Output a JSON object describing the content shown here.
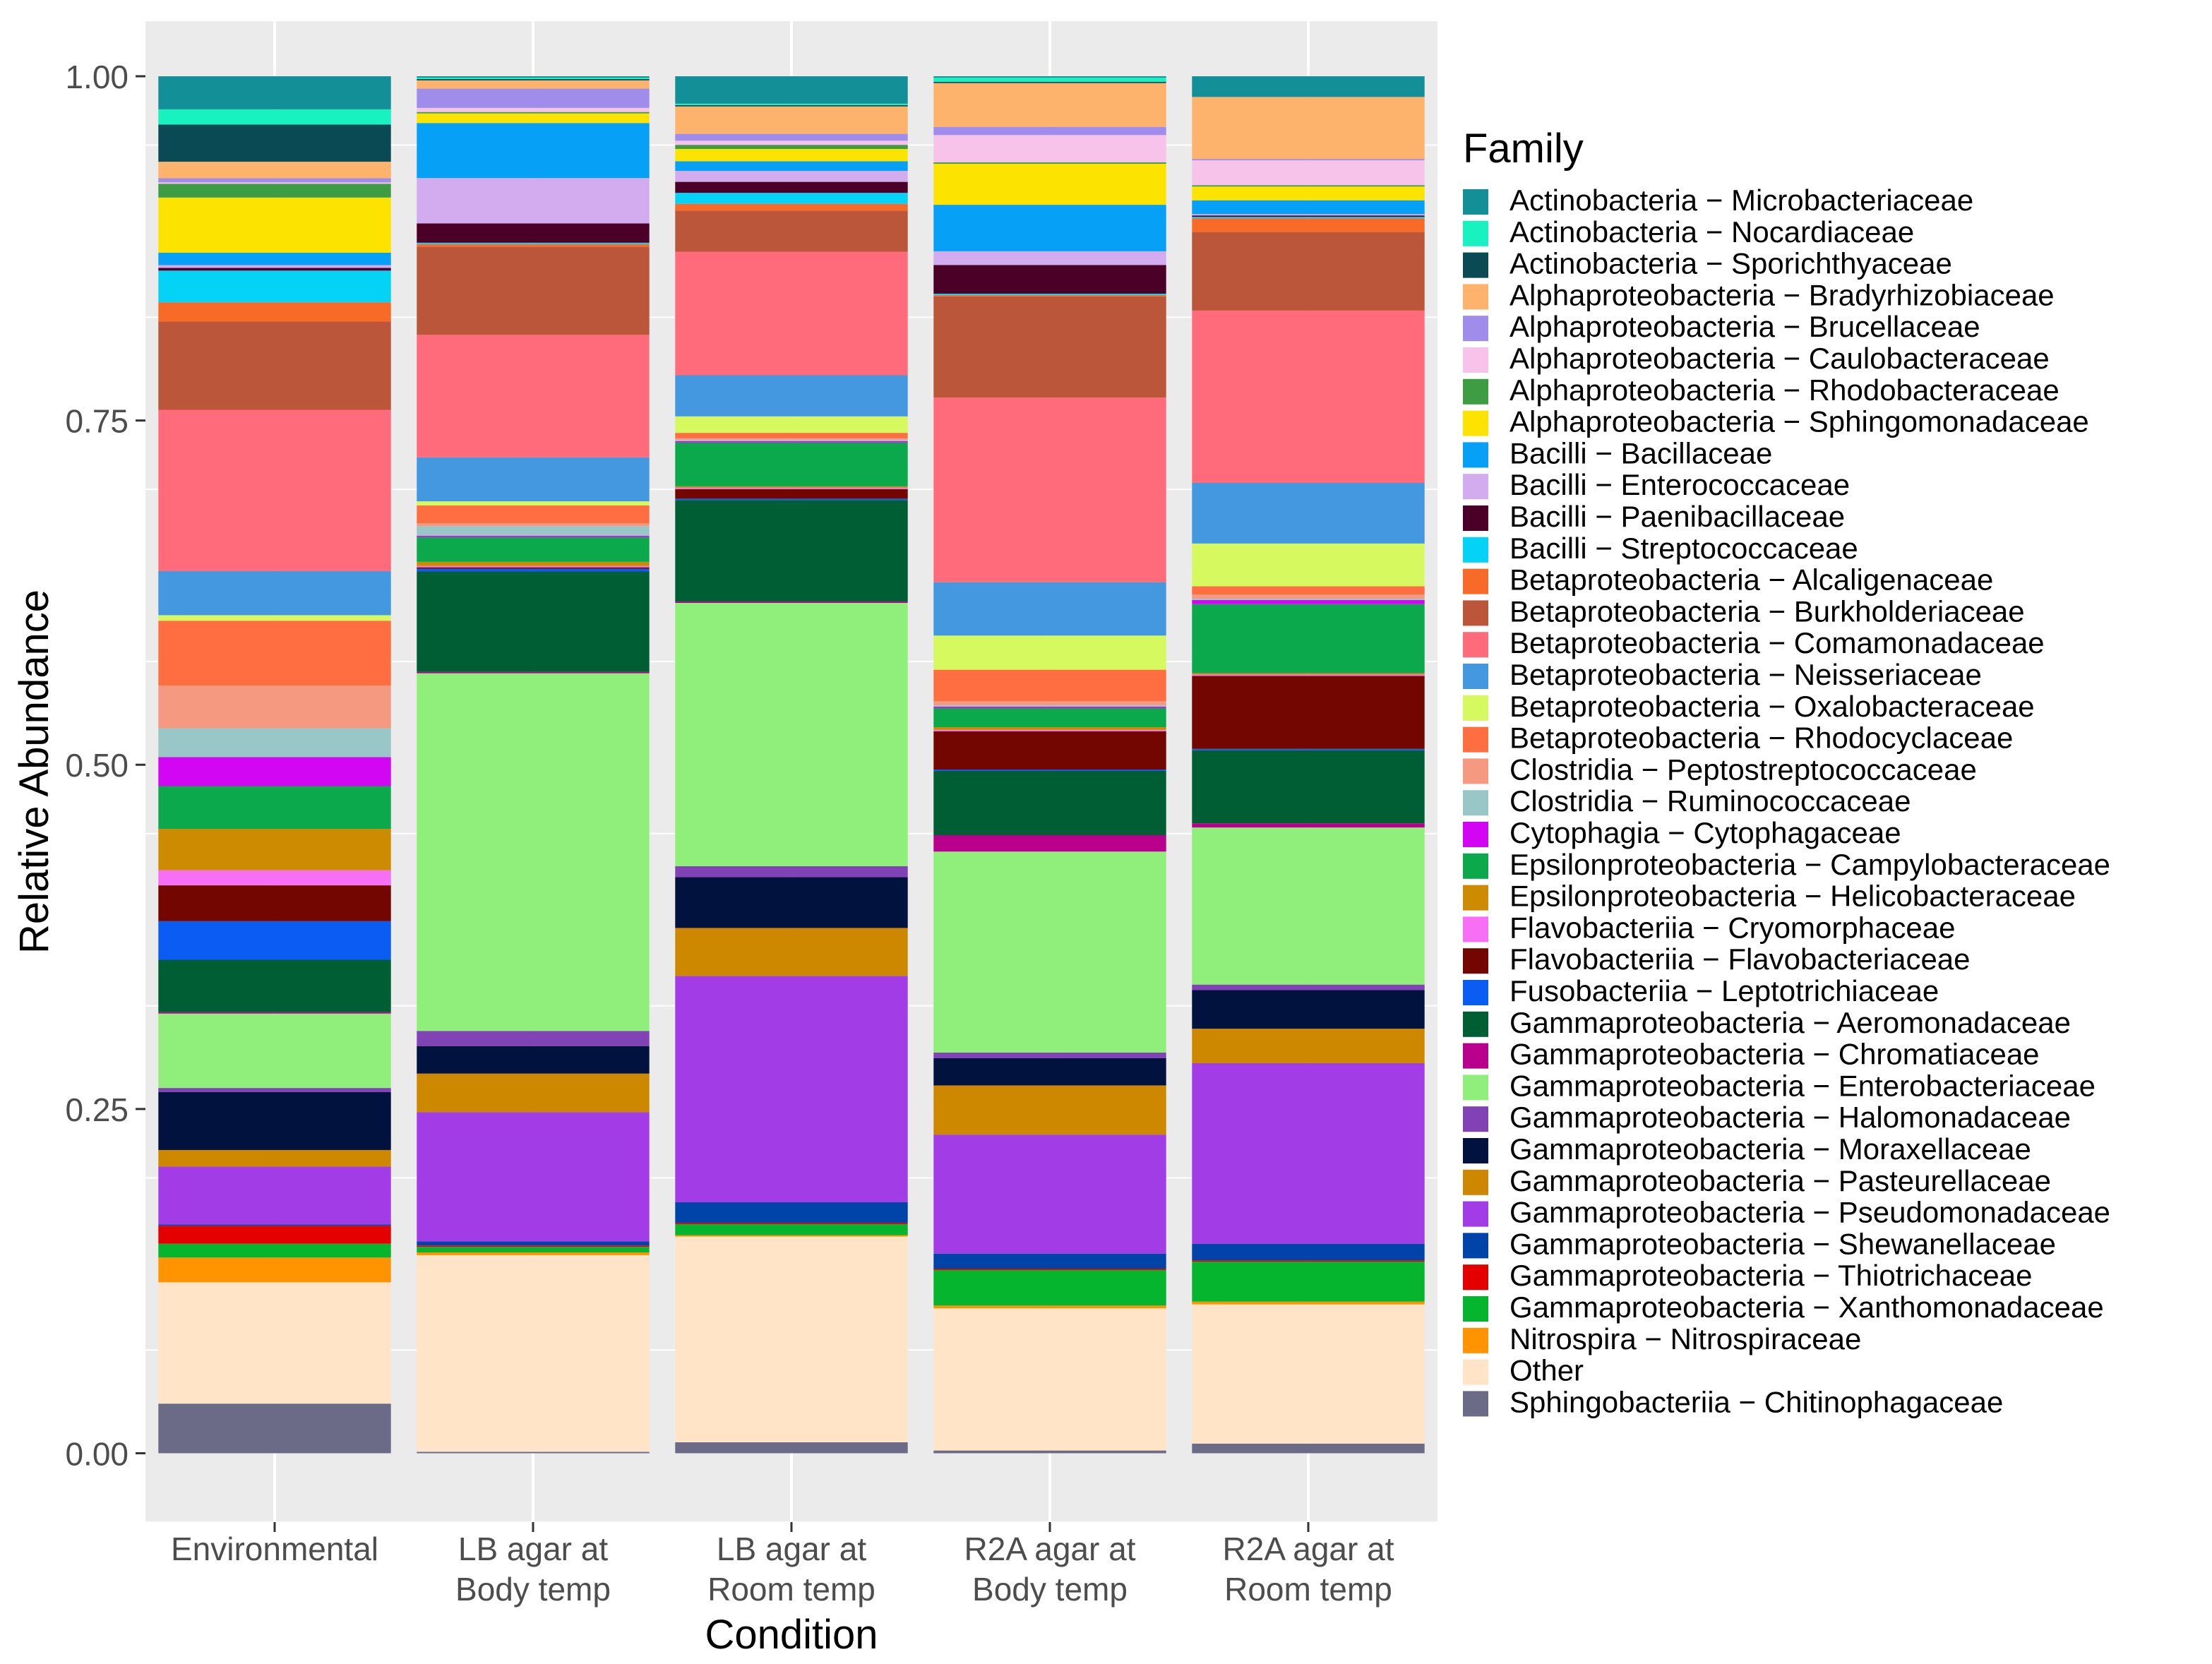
{
  "chart_data": {
    "type": "bar",
    "stacked": true,
    "xlabel": "Condition",
    "ylabel": "Relative Abundance",
    "ylim": [
      -0.05,
      1.04
    ],
    "yticks": [
      0,
      0.25,
      0.5,
      0.75,
      1
    ],
    "ytick_labels": [
      "0.00",
      "0.25",
      "0.50",
      "0.75",
      "1.00"
    ],
    "grid": true,
    "legend_title": "Family",
    "legend_position": "right",
    "categories": [
      [
        "Environmental"
      ],
      [
        "LB agar at",
        "Body temp"
      ],
      [
        "LB agar at",
        "Room temp"
      ],
      [
        "R2A agar at",
        "Body temp"
      ],
      [
        "R2A agar at",
        "Room temp"
      ]
    ],
    "series": [
      {
        "name": "Actinobacteria − Microbacteriaceae",
        "color": "#138F98",
        "values": [
          0.024,
          0.001,
          0.02,
          0.001,
          0.015
        ]
      },
      {
        "name": "Actinobacteria − Nocardiaceae",
        "color": "#17F2C0",
        "values": [
          0.011,
          0.001,
          0.001,
          0.003,
          0.0
        ]
      },
      {
        "name": "Actinobacteria − Sporichthyaceae",
        "color": "#0A4A54",
        "values": [
          0.027,
          0.001,
          0.001,
          0.001,
          0.0
        ]
      },
      {
        "name": "Alphaproteobacteria − Bradyrhizobiaceae",
        "color": "#FDB36B",
        "values": [
          0.012,
          0.006,
          0.02,
          0.032,
          0.045
        ]
      },
      {
        "name": "Alphaproteobacteria − Brucellaceae",
        "color": "#9F8CEB",
        "values": [
          0.003,
          0.014,
          0.005,
          0.006,
          0.001
        ]
      },
      {
        "name": "Alphaproteobacteria − Caulobacteraceae",
        "color": "#F7C3EA",
        "values": [
          0.001,
          0.003,
          0.003,
          0.02,
          0.018
        ]
      },
      {
        "name": "Alphaproteobacteria − Rhodobacteraceae",
        "color": "#3E9C42",
        "values": [
          0.01,
          0.001,
          0.003,
          0.001,
          0.001
        ]
      },
      {
        "name": "Alphaproteobacteria − Sphingomonadaceae",
        "color": "#FCE300",
        "values": [
          0.04,
          0.007,
          0.009,
          0.03,
          0.01
        ]
      },
      {
        "name": "Bacilli − Bacillaceae",
        "color": "#06A0F6",
        "values": [
          0.009,
          0.04,
          0.007,
          0.034,
          0.01
        ]
      },
      {
        "name": "Bacilli − Enterococcaceae",
        "color": "#D3ACEF",
        "values": [
          0.002,
          0.033,
          0.008,
          0.01,
          0.001
        ]
      },
      {
        "name": "Bacilli − Paenibacillaceae",
        "color": "#4A0027",
        "values": [
          0.002,
          0.014,
          0.008,
          0.021,
          0.001
        ]
      },
      {
        "name": "Bacilli − Streptococcaceae",
        "color": "#04D3F6",
        "values": [
          0.023,
          0.001,
          0.008,
          0.001,
          0.001
        ]
      },
      {
        "name": "Betaproteobacteria − Alcaligenaceae",
        "color": "#F86A28",
        "values": [
          0.014,
          0.002,
          0.005,
          0.001,
          0.01
        ]
      },
      {
        "name": "Betaproteobacteria − Burkholderiaceae",
        "color": "#BC563B",
        "values": [
          0.064,
          0.064,
          0.03,
          0.074,
          0.057
        ]
      },
      {
        "name": "Betaproteobacteria − Comamonadaceae",
        "color": "#FF6B7A",
        "values": [
          0.117,
          0.089,
          0.09,
          0.135,
          0.125
        ]
      },
      {
        "name": "Betaproteobacteria − Neisseriaceae",
        "color": "#4398E0",
        "values": [
          0.032,
          0.032,
          0.03,
          0.039,
          0.044
        ]
      },
      {
        "name": "Betaproteobacteria − Oxalobacteraceae",
        "color": "#D5F95E",
        "values": [
          0.004,
          0.003,
          0.012,
          0.025,
          0.031
        ]
      },
      {
        "name": "Betaproteobacteria − Rhodocyclaceae",
        "color": "#FF6E40",
        "values": [
          0.047,
          0.013,
          0.004,
          0.023,
          0.006
        ]
      },
      {
        "name": "Clostridia − Peptostreptococcaceae",
        "color": "#F59980",
        "values": [
          0.031,
          0.002,
          0.001,
          0.003,
          0.003
        ]
      },
      {
        "name": "Clostridia − Ruminococcaceae",
        "color": "#99C7C8",
        "values": [
          0.021,
          0.007,
          0.001,
          0.001,
          0.001
        ]
      },
      {
        "name": "Cytophagia − Cytophagaceae",
        "color": "#D206F2",
        "values": [
          0.021,
          0.001,
          0.001,
          0.001,
          0.003
        ]
      },
      {
        "name": "Epsilonproteobacteria − Campylobacteraceae",
        "color": "#0BA84C",
        "values": [
          0.031,
          0.018,
          0.032,
          0.014,
          0.05
        ]
      },
      {
        "name": "Epsilonproteobacteria − Helicobacteraceae",
        "color": "#CC8B00",
        "values": [
          0.03,
          0.003,
          0.001,
          0.002,
          0.001
        ]
      },
      {
        "name": "Flavobacteriia − Cryomorphaceae",
        "color": "#F66FF4",
        "values": [
          0.011,
          0.001,
          0.001,
          0.001,
          0.001
        ]
      },
      {
        "name": "Flavobacteriia − Flavobacteriaceae",
        "color": "#730700",
        "values": [
          0.026,
          0.001,
          0.007,
          0.028,
          0.053
        ]
      },
      {
        "name": "Fusobacteriia − Leptotrichiaceae",
        "color": "#0A5CF3",
        "values": [
          0.028,
          0.002,
          0.001,
          0.001,
          0.001
        ]
      },
      {
        "name": "Gammaproteobacteria − Aeromonadaceae",
        "color": "#005E35",
        "values": [
          0.038,
          0.073,
          0.074,
          0.047,
          0.053
        ]
      },
      {
        "name": "Gammaproteobacteria − Chromatiaceae",
        "color": "#B8008C",
        "values": [
          0.001,
          0.001,
          0.001,
          0.012,
          0.003
        ]
      },
      {
        "name": "Gammaproteobacteria − Enterobacteriaceae",
        "color": "#90EE7A",
        "values": [
          0.054,
          0.26,
          0.192,
          0.147,
          0.114
        ]
      },
      {
        "name": "Gammaproteobacteria − Halomonadaceae",
        "color": "#8042B5",
        "values": [
          0.003,
          0.011,
          0.008,
          0.004,
          0.004
        ]
      },
      {
        "name": "Gammaproteobacteria − Moraxellaceae",
        "color": "#02123E",
        "values": [
          0.042,
          0.02,
          0.037,
          0.02,
          0.028
        ]
      },
      {
        "name": "Gammaproteobacteria − Pasteurellaceae",
        "color": "#CE8800",
        "values": [
          0.012,
          0.028,
          0.035,
          0.036,
          0.025
        ]
      },
      {
        "name": "Gammaproteobacteria − Pseudomonadaceae",
        "color": "#A23CE6",
        "values": [
          0.042,
          0.094,
          0.165,
          0.087,
          0.131
        ]
      },
      {
        "name": "Gammaproteobacteria − Shewanellaceae",
        "color": "#0044A9",
        "values": [
          0.001,
          0.003,
          0.015,
          0.011,
          0.012
        ]
      },
      {
        "name": "Gammaproteobacteria − Thiotrichaceae",
        "color": "#E40000",
        "values": [
          0.013,
          0.001,
          0.001,
          0.001,
          0.001
        ]
      },
      {
        "name": "Gammaproteobacteria − Xanthomonadaceae",
        "color": "#05B52E",
        "values": [
          0.01,
          0.004,
          0.008,
          0.026,
          0.029
        ]
      },
      {
        "name": "Nitrospira − Nitrospiraceae",
        "color": "#FF9400",
        "values": [
          0.018,
          0.002,
          0.001,
          0.002,
          0.002
        ]
      },
      {
        "name": "Other",
        "color": "#FFE4C8",
        "values": [
          0.088,
          0.143,
          0.15,
          0.104,
          0.101
        ]
      },
      {
        "name": "Sphingobacteriia − Chitinophagaceae",
        "color": "#6B6A87",
        "values": [
          0.036,
          0.001,
          0.008,
          0.002,
          0.007
        ]
      }
    ]
  }
}
